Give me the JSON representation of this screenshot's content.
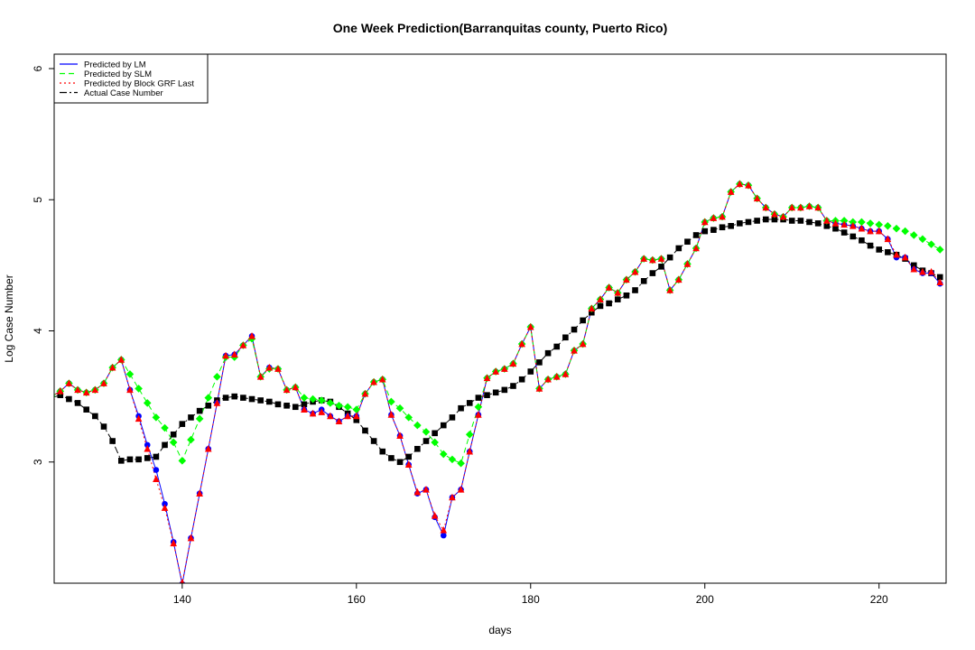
{
  "chart_data": {
    "type": "line",
    "title": "One Week Prediction(Barranquitas county, Puerto Rico)",
    "x_label": "days",
    "y_label": "Log Case Number",
    "xlim": [
      125.3,
      227.7
    ],
    "ylim": [
      2.076,
      6.11
    ],
    "xticks": [
      140,
      160,
      180,
      200,
      220
    ],
    "yticks": [
      3,
      4,
      5,
      6
    ],
    "legend": "top-left",
    "x": [
      125,
      126,
      127,
      128,
      129,
      130,
      131,
      132,
      133,
      134,
      135,
      136,
      137,
      138,
      139,
      140,
      141,
      142,
      143,
      144,
      145,
      146,
      147,
      148,
      149,
      150,
      151,
      152,
      153,
      154,
      155,
      156,
      157,
      158,
      159,
      160,
      161,
      162,
      163,
      164,
      165,
      166,
      167,
      168,
      169,
      170,
      171,
      172,
      173,
      174,
      175,
      176,
      177,
      178,
      179,
      180,
      181,
      182,
      183,
      184,
      185,
      186,
      187,
      188,
      189,
      190,
      191,
      192,
      193,
      194,
      195,
      196,
      197,
      198,
      199,
      200,
      201,
      202,
      203,
      204,
      205,
      206,
      207,
      208,
      209,
      210,
      211,
      212,
      213,
      214,
      215,
      216,
      217,
      218,
      219,
      220,
      221,
      222,
      223,
      224,
      225,
      226,
      227
    ],
    "series": [
      {
        "name": "Predicted by LM",
        "color": "#0000ff",
        "line_style": "solid",
        "marker": "circle",
        "values": [
          3.5,
          3.54,
          3.6,
          3.55,
          3.53,
          3.55,
          3.6,
          3.72,
          3.78,
          3.55,
          3.35,
          3.13,
          2.94,
          2.68,
          2.39,
          2.07,
          2.42,
          2.76,
          3.1,
          3.45,
          3.81,
          3.82,
          3.89,
          3.96,
          3.65,
          3.72,
          3.71,
          3.55,
          3.57,
          3.4,
          3.37,
          3.4,
          3.35,
          3.31,
          3.35,
          3.35,
          3.52,
          3.61,
          3.63,
          3.36,
          3.2,
          2.98,
          2.76,
          2.79,
          2.58,
          2.44,
          2.73,
          2.79,
          3.08,
          3.36,
          3.64,
          3.69,
          3.71,
          3.75,
          3.9,
          4.03,
          3.56,
          3.63,
          3.65,
          3.67,
          3.85,
          3.9,
          4.17,
          4.24,
          4.33,
          4.29,
          4.39,
          4.45,
          4.55,
          4.54,
          4.55,
          4.31,
          4.39,
          4.51,
          4.63,
          4.83,
          4.86,
          4.87,
          5.06,
          5.12,
          5.11,
          5.01,
          4.94,
          4.89,
          4.87,
          4.94,
          4.94,
          4.95,
          4.94,
          4.84,
          4.82,
          4.81,
          4.8,
          4.78,
          4.76,
          4.76,
          4.7,
          4.56,
          4.56,
          4.47,
          4.44,
          4.44,
          4.36
        ]
      },
      {
        "name": "Predicted by SLM",
        "color": "#00ff00",
        "line_style": "dashed",
        "marker": "diamond",
        "values": [
          3.5,
          3.54,
          3.6,
          3.55,
          3.53,
          3.55,
          3.6,
          3.72,
          3.78,
          3.67,
          3.56,
          3.45,
          3.34,
          3.26,
          3.15,
          3.01,
          3.17,
          3.33,
          3.49,
          3.65,
          3.8,
          3.8,
          3.89,
          3.94,
          3.65,
          3.71,
          3.71,
          3.55,
          3.57,
          3.49,
          3.48,
          3.47,
          3.45,
          3.43,
          3.42,
          3.4,
          3.52,
          3.61,
          3.63,
          3.46,
          3.41,
          3.34,
          3.28,
          3.23,
          3.15,
          3.06,
          3.02,
          2.99,
          3.21,
          3.42,
          3.64,
          3.69,
          3.71,
          3.75,
          3.9,
          4.03,
          3.56,
          3.63,
          3.65,
          3.67,
          3.85,
          3.9,
          4.17,
          4.24,
          4.33,
          4.29,
          4.39,
          4.45,
          4.55,
          4.54,
          4.55,
          4.31,
          4.39,
          4.51,
          4.63,
          4.83,
          4.86,
          4.87,
          5.06,
          5.12,
          5.11,
          5.01,
          4.94,
          4.89,
          4.87,
          4.94,
          4.94,
          4.95,
          4.94,
          4.84,
          4.84,
          4.84,
          4.83,
          4.83,
          4.82,
          4.81,
          4.8,
          4.78,
          4.76,
          4.73,
          4.7,
          4.66,
          4.62
        ]
      },
      {
        "name": "Predicted by Block GRF Last",
        "color": "#ff0000",
        "line_style": "dotted",
        "marker": "triangle",
        "values": [
          3.5,
          3.54,
          3.6,
          3.55,
          3.53,
          3.55,
          3.6,
          3.72,
          3.78,
          3.55,
          3.33,
          3.1,
          2.87,
          2.65,
          2.38,
          2.08,
          2.42,
          2.76,
          3.1,
          3.45,
          3.81,
          3.82,
          3.89,
          3.96,
          3.65,
          3.72,
          3.71,
          3.55,
          3.57,
          3.4,
          3.37,
          3.38,
          3.35,
          3.31,
          3.35,
          3.35,
          3.52,
          3.61,
          3.63,
          3.36,
          3.2,
          2.98,
          2.77,
          2.79,
          2.59,
          2.48,
          2.73,
          2.79,
          3.08,
          3.36,
          3.64,
          3.69,
          3.71,
          3.75,
          3.9,
          4.03,
          3.56,
          3.63,
          3.65,
          3.67,
          3.85,
          3.9,
          4.17,
          4.24,
          4.33,
          4.29,
          4.39,
          4.45,
          4.55,
          4.54,
          4.55,
          4.31,
          4.39,
          4.51,
          4.63,
          4.83,
          4.86,
          4.87,
          5.06,
          5.12,
          5.11,
          5.01,
          4.94,
          4.89,
          4.87,
          4.94,
          4.94,
          4.95,
          4.94,
          4.84,
          4.82,
          4.81,
          4.8,
          4.78,
          4.76,
          4.76,
          4.7,
          4.58,
          4.56,
          4.47,
          4.45,
          4.45,
          4.37
        ]
      },
      {
        "name": "Actual Case Number",
        "color": "#000000",
        "line_style": "dashdot",
        "marker": "square",
        "values": [
          3.49,
          3.51,
          3.48,
          3.45,
          3.4,
          3.35,
          3.27,
          3.16,
          3.01,
          3.02,
          3.02,
          3.03,
          3.04,
          3.13,
          3.21,
          3.29,
          3.34,
          3.39,
          3.43,
          3.47,
          3.49,
          3.5,
          3.49,
          3.48,
          3.47,
          3.46,
          3.44,
          3.43,
          3.42,
          3.44,
          3.46,
          3.47,
          3.46,
          3.42,
          3.37,
          3.32,
          3.24,
          3.16,
          3.08,
          3.03,
          3.0,
          3.04,
          3.1,
          3.16,
          3.22,
          3.28,
          3.34,
          3.41,
          3.45,
          3.49,
          3.51,
          3.53,
          3.55,
          3.58,
          3.63,
          3.69,
          3.76,
          3.83,
          3.88,
          3.95,
          4.01,
          4.08,
          4.14,
          4.19,
          4.21,
          4.24,
          4.27,
          4.31,
          4.38,
          4.44,
          4.49,
          4.56,
          4.63,
          4.68,
          4.73,
          4.76,
          4.77,
          4.79,
          4.8,
          4.82,
          4.83,
          4.84,
          4.85,
          4.85,
          4.85,
          4.84,
          4.84,
          4.83,
          4.82,
          4.8,
          4.78,
          4.75,
          4.72,
          4.69,
          4.65,
          4.62,
          4.6,
          4.58,
          4.55,
          4.5,
          4.46,
          4.44,
          4.41
        ]
      }
    ]
  }
}
